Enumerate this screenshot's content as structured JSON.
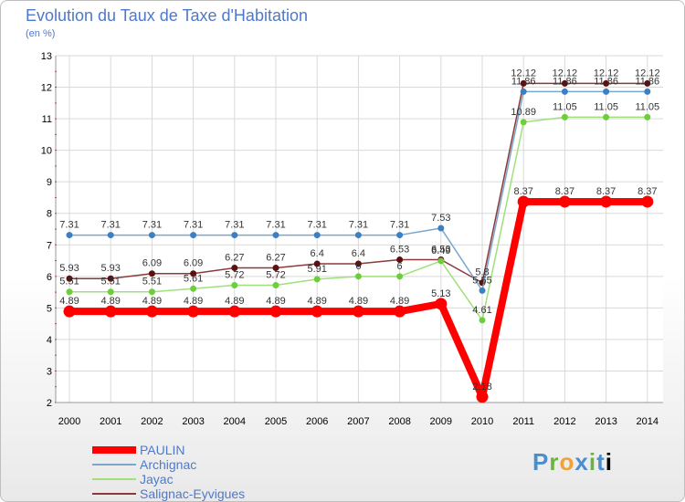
{
  "header": {
    "title": "Evolution du Taux de Taxe d'Habitation",
    "unit": "(en %)"
  },
  "brand": {
    "letters": [
      "P",
      "r",
      "o",
      "x",
      "i",
      "t",
      "i"
    ]
  },
  "chart_data": {
    "type": "line",
    "title": "Evolution du Taux de Taxe d'Habitation",
    "ylabel": "(en %)",
    "xlabel": "",
    "x": [
      "2000",
      "2001",
      "2002",
      "2003",
      "2004",
      "2005",
      "2006",
      "2007",
      "2008",
      "2009",
      "2010",
      "2011",
      "2012",
      "2013",
      "2014"
    ],
    "ylim": [
      2,
      13
    ],
    "yticks": [
      2,
      3,
      4,
      5,
      6,
      7,
      8,
      9,
      10,
      11,
      12,
      13
    ],
    "ytick_labels": [
      "2",
      "3",
      "4",
      "5",
      "6",
      "7",
      "8",
      "9",
      "10",
      "11",
      "12",
      "13"
    ],
    "legend_position": "bottom-left",
    "series": [
      {
        "name": "PAULIN",
        "color": "#ff0000",
        "marker": "#ff0000",
        "values": [
          4.89,
          4.89,
          4.89,
          4.89,
          4.89,
          4.89,
          4.89,
          4.89,
          4.89,
          5.13,
          2.18,
          8.37,
          8.37,
          8.37,
          8.37
        ],
        "labels": [
          "4.89",
          "4.89",
          "4.89",
          "4.89",
          "4.89",
          "4.89",
          "4.89",
          "4.89",
          "4.89",
          "5.13",
          "2.18",
          "8.37",
          "8.37",
          "8.37",
          "8.37"
        ]
      },
      {
        "name": "Archignac",
        "color": "#7aa6cc",
        "marker": "#3d7fc4",
        "values": [
          7.31,
          7.31,
          7.31,
          7.31,
          7.31,
          7.31,
          7.31,
          7.31,
          7.31,
          7.53,
          5.55,
          11.86,
          11.86,
          11.86,
          11.86
        ],
        "labels": [
          "7.31",
          "7.31",
          "7.31",
          "7.31",
          "7.31",
          "7.31",
          "7.31",
          "7.31",
          "7.31",
          "7.53",
          "5.55",
          "11.86",
          "11.86",
          "11.86",
          "11.86"
        ]
      },
      {
        "name": "Jayac",
        "color": "#9fe07a",
        "marker": "#6ccf3a",
        "values": [
          5.51,
          5.51,
          5.51,
          5.61,
          5.72,
          5.72,
          5.91,
          6,
          6,
          6.49,
          4.61,
          10.89,
          11.05,
          11.05,
          11.05
        ],
        "labels": [
          "5.51",
          "5.51",
          "5.51",
          "5.61",
          "5.72",
          "5.72",
          "5.91",
          "6",
          "6",
          "6.49",
          "4.61",
          "10.89",
          "11.05",
          "11.05",
          "11.05"
        ]
      },
      {
        "name": "Salignac-Eyvigues",
        "color": "#8b3a3a",
        "marker": "#5a1010",
        "values": [
          5.93,
          5.93,
          6.09,
          6.09,
          6.27,
          6.27,
          6.4,
          6.4,
          6.53,
          6.53,
          5.8,
          12.12,
          12.12,
          12.12,
          12.12
        ],
        "labels": [
          "5.93",
          "5.93",
          "6.09",
          "6.09",
          "6.27",
          "6.27",
          "6.4",
          "6.4",
          "6.53",
          "6.53",
          "5.8",
          "12.12",
          "12.12",
          "12.12",
          "12.12"
        ]
      }
    ]
  }
}
